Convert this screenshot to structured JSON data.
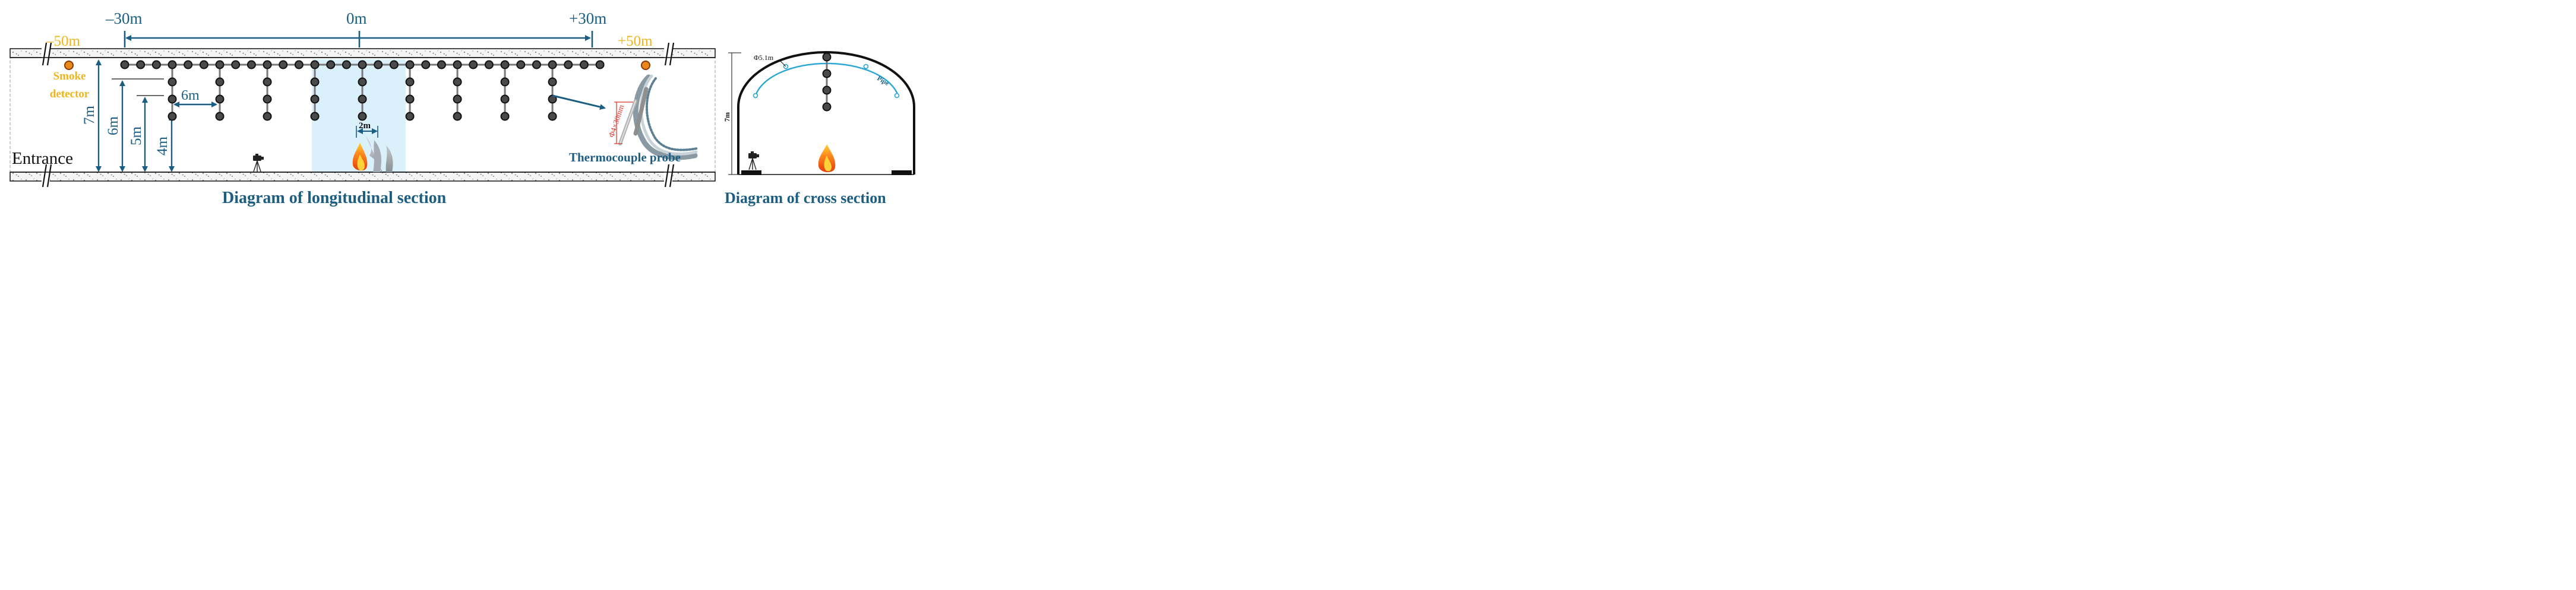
{
  "longitudinal": {
    "caption": "Diagram of longitudinal section",
    "entrance_label": "Entrance",
    "smoke_detector_label_line1": "Smoke",
    "smoke_detector_label_line2": "detector",
    "thermocouple_label": "Thermocouple probe",
    "probe_dimension_label": "Φ4×30mm",
    "fire_width_label": "2m",
    "horizontal_spacing_label": "6m",
    "position_labels": {
      "minus50": "–50m",
      "minus30": "–30m",
      "zero": "0m",
      "plus30": "+30m",
      "plus50": "+50m"
    },
    "height_labels": [
      "7m",
      "6m",
      "5m",
      "4m"
    ]
  },
  "cross": {
    "caption": "Diagram of cross section",
    "diameter_label": "Φ5.1m",
    "pipe_label": "Pipe",
    "height_label": "7m"
  },
  "colors": {
    "annotation_blue": "#1b5e82",
    "detector_gold": "#f0b41c",
    "pipe_cyan": "#29a6d6",
    "sensor_node": "#4a4a4a",
    "fire_zone": "#d6f0fb"
  }
}
